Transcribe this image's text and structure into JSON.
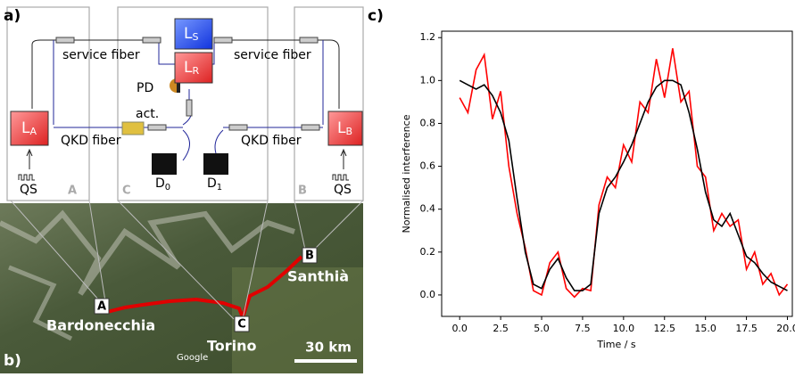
{
  "labels": {
    "a": "a)",
    "b": "b)",
    "c": "c)"
  },
  "schematic": {
    "ls": {
      "main": "L",
      "sub": "S"
    },
    "lr": {
      "main": "L",
      "sub": "R"
    },
    "la": {
      "main": "L",
      "sub": "A"
    },
    "lb": {
      "main": "L",
      "sub": "B"
    },
    "service_left": "service fiber",
    "service_right": "service fiber",
    "qkd_left": "QKD fiber",
    "qkd_right": "QKD fiber",
    "pd": "PD",
    "act": "act.",
    "d0": {
      "main": "D",
      "sub": "0"
    },
    "d1": {
      "main": "D",
      "sub": "1"
    },
    "qs_left": "QS",
    "qs_right": "QS",
    "site_a": "A",
    "site_b": "B",
    "site_c": "C"
  },
  "map": {
    "bardonecchia": "Bardonecchia",
    "torino": "Torino",
    "santhia": "Santhià",
    "a": "A",
    "b": "B",
    "c": "C",
    "scale": "30 km",
    "google": "Google"
  },
  "chart_data": {
    "type": "line",
    "xlabel": "Time / s",
    "ylabel": "Normalised interference",
    "x": [
      0,
      0.5,
      1,
      1.5,
      2,
      2.5,
      3,
      3.5,
      4,
      4.5,
      5,
      5.5,
      6,
      6.5,
      7,
      7.5,
      8,
      8.5,
      9,
      9.5,
      10,
      10.5,
      11,
      11.5,
      12,
      12.5,
      13,
      13.5,
      14,
      14.5,
      15,
      15.5,
      16,
      16.5,
      17,
      17.5,
      18,
      18.5,
      19,
      19.5,
      20
    ],
    "series": [
      {
        "color": "#ff0000",
        "values": [
          0.92,
          0.85,
          1.05,
          1.12,
          0.82,
          0.95,
          0.6,
          0.38,
          0.22,
          0.02,
          0.0,
          0.15,
          0.2,
          0.03,
          -0.01,
          0.03,
          0.02,
          0.42,
          0.55,
          0.5,
          0.7,
          0.62,
          0.9,
          0.85,
          1.1,
          0.92,
          1.15,
          0.9,
          0.95,
          0.6,
          0.55,
          0.3,
          0.38,
          0.32,
          0.35,
          0.12,
          0.2,
          0.05,
          0.1,
          0.0,
          0.05
        ]
      },
      {
        "color": "#000000",
        "values": [
          1.0,
          0.98,
          0.96,
          0.98,
          0.93,
          0.85,
          0.72,
          0.45,
          0.2,
          0.05,
          0.03,
          0.12,
          0.17,
          0.08,
          0.02,
          0.02,
          0.05,
          0.38,
          0.5,
          0.55,
          0.62,
          0.7,
          0.8,
          0.9,
          0.97,
          1.0,
          1.0,
          0.98,
          0.85,
          0.68,
          0.48,
          0.35,
          0.32,
          0.38,
          0.28,
          0.18,
          0.15,
          0.1,
          0.06,
          0.04,
          0.02
        ]
      }
    ],
    "xlim": [
      -1.1,
      20.3
    ],
    "ylim": [
      -0.1,
      1.23
    ],
    "xticks": [
      {
        "value": 0,
        "label": "0.0"
      },
      {
        "value": 2.5,
        "label": "2.5"
      },
      {
        "value": 5,
        "label": "5.0"
      },
      {
        "value": 7.5,
        "label": "7.5"
      },
      {
        "value": 10,
        "label": "10.0"
      },
      {
        "value": 12.5,
        "label": "12.5"
      },
      {
        "value": 15,
        "label": "15.0"
      },
      {
        "value": 17.5,
        "label": "17.5"
      },
      {
        "value": 20,
        "label": "20.0"
      }
    ],
    "yticks": [
      {
        "value": 0,
        "label": "0.0"
      },
      {
        "value": 0.2,
        "label": "0.2"
      },
      {
        "value": 0.4,
        "label": "0.4"
      },
      {
        "value": 0.6,
        "label": "0.6"
      },
      {
        "value": 0.8,
        "label": "0.8"
      },
      {
        "value": 1,
        "label": "1.0"
      },
      {
        "value": 1.2,
        "label": "1.2"
      }
    ]
  }
}
